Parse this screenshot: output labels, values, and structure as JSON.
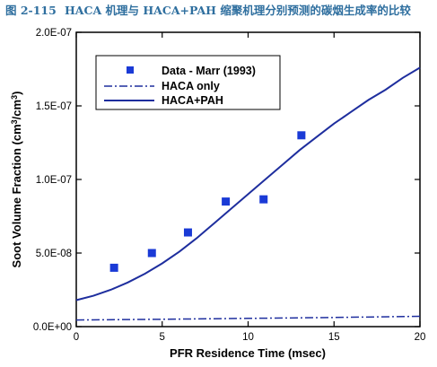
{
  "figure": {
    "caption_number": "图 2-115",
    "caption_text": "HACA 机理与 HACA+PAH 缩聚机理分别预测的碳烟生成率的比较"
  },
  "chart_data": {
    "type": "line",
    "xlabel": "PFR Residence Time (msec)",
    "ylabel": {
      "main": "Soot Volume Fraction (cm",
      "sup1": "3",
      "mid": "/cm",
      "sup2": "3",
      "end": ")"
    },
    "xlim": [
      0,
      20
    ],
    "ylim": [
      0,
      2e-07
    ],
    "x_ticks": [
      {
        "value": 0,
        "label": "0"
      },
      {
        "value": 5,
        "label": "5"
      },
      {
        "value": 10,
        "label": "10"
      },
      {
        "value": 15,
        "label": "15"
      },
      {
        "value": 20,
        "label": "20"
      }
    ],
    "y_ticks": [
      {
        "value": 0,
        "label": "0.0E+00"
      },
      {
        "value": 5e-08,
        "label": "5.0E-08"
      },
      {
        "value": 1e-07,
        "label": "1.0E-07"
      },
      {
        "value": 1.5e-07,
        "label": "1.5E-07"
      },
      {
        "value": 2e-07,
        "label": "2.0E-07"
      }
    ],
    "grid": false,
    "legend_position": "top-left",
    "colors": {
      "series": "#1e2e9e",
      "markers": "#1a3ad6",
      "axes": "#000000"
    },
    "series": [
      {
        "name": "Data - Marr (1993)",
        "style": "marker",
        "x": [
          2.2,
          4.4,
          6.5,
          8.7,
          10.9,
          13.1
        ],
        "y": [
          4e-08,
          5e-08,
          6.4e-08,
          8.5e-08,
          8.65e-08,
          1.3e-07
        ]
      },
      {
        "name": "HACA only",
        "style": "dashdot",
        "x": [
          0,
          5,
          10,
          15,
          20
        ],
        "y": [
          4.5e-09,
          5e-09,
          5.6e-09,
          6.2e-09,
          7e-09
        ]
      },
      {
        "name": "HACA+PAH",
        "style": "solid",
        "x": [
          0,
          1,
          2,
          3,
          4,
          5,
          6,
          7,
          8,
          9,
          10,
          11,
          12,
          13,
          14,
          15,
          16,
          17,
          18,
          19,
          20
        ],
        "y": [
          1.8e-08,
          2.1e-08,
          2.5e-08,
          3e-08,
          3.6e-08,
          4.3e-08,
          5.1e-08,
          6e-08,
          7e-08,
          8e-08,
          9e-08,
          1e-07,
          1.1e-07,
          1.2e-07,
          1.29e-07,
          1.38e-07,
          1.46e-07,
          1.54e-07,
          1.61e-07,
          1.69e-07,
          1.76e-07
        ]
      }
    ]
  }
}
